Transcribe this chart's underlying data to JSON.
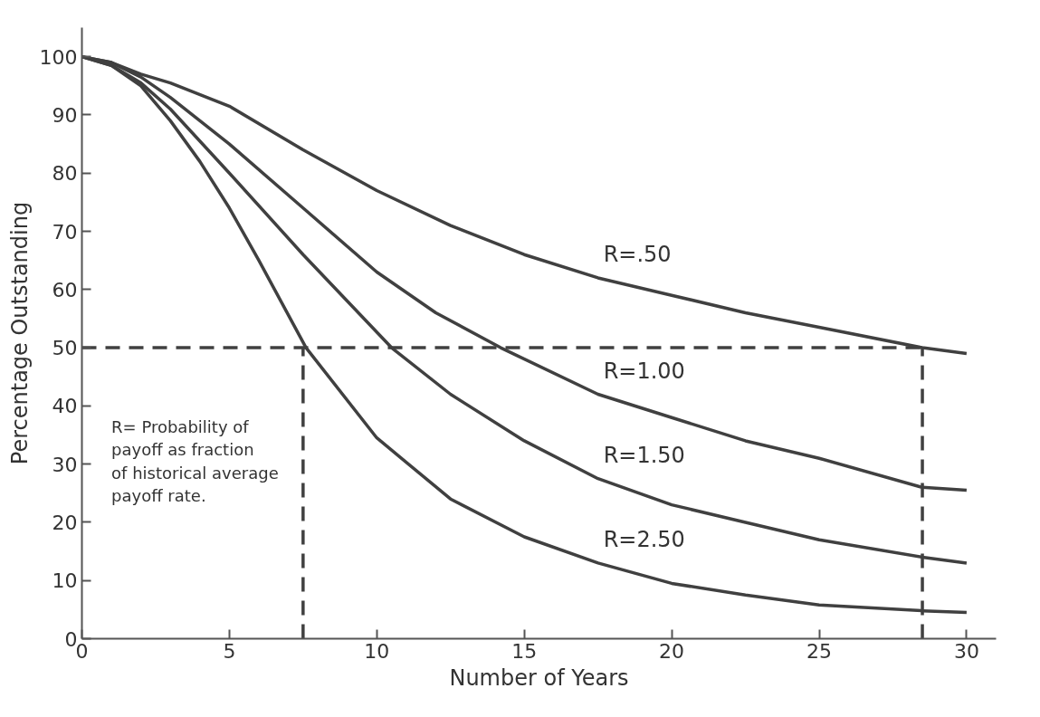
{
  "chart_data": {
    "type": "line",
    "xlabel": "Number of Years",
    "ylabel": "Percentage Outstanding",
    "xlim": [
      0,
      31
    ],
    "ylim": [
      0,
      105
    ],
    "xticks": [
      0,
      5,
      10,
      15,
      20,
      25,
      30
    ],
    "yticks": [
      0,
      10,
      20,
      30,
      40,
      50,
      60,
      70,
      80,
      90,
      100
    ],
    "grid": false,
    "legend": false,
    "marker": "none",
    "series": [
      {
        "name": "R=.50",
        "color": "#404040",
        "x": [
          0,
          1,
          2,
          3,
          5,
          7.5,
          10,
          12.5,
          15,
          17.5,
          20,
          22.5,
          25,
          28.5,
          30
        ],
        "values": [
          100,
          99,
          97,
          95.5,
          91.5,
          84,
          77,
          71,
          66,
          62,
          59,
          56,
          53.5,
          50,
          49
        ]
      },
      {
        "name": "R=1.00",
        "color": "#404040",
        "x": [
          0,
          1,
          2,
          3,
          5,
          7.5,
          10,
          12,
          14.2,
          17.5,
          20,
          22.5,
          25,
          28.5,
          30
        ],
        "values": [
          100,
          99,
          96.5,
          93,
          85,
          74,
          63,
          56,
          50,
          42,
          38,
          34,
          31,
          26,
          25.5
        ]
      },
      {
        "name": "R=1.50",
        "color": "#404040",
        "x": [
          0,
          1,
          2,
          3,
          5,
          7.5,
          10.5,
          12.5,
          15,
          17.5,
          20,
          22.5,
          25,
          28.5,
          30
        ],
        "values": [
          100,
          98.5,
          95.5,
          91,
          80,
          66,
          50,
          42,
          34,
          27.5,
          23,
          20,
          17,
          14,
          13
        ]
      },
      {
        "name": "R=2.50",
        "color": "#404040",
        "x": [
          0,
          1,
          2,
          3,
          4,
          5,
          6,
          7.6,
          10,
          12.5,
          15,
          17.5,
          20,
          22.5,
          25,
          28.5,
          30
        ],
        "values": [
          100,
          98.5,
          95,
          89,
          82,
          74,
          65,
          50,
          34.5,
          24,
          17.5,
          13,
          9.5,
          7.5,
          5.8,
          4.8,
          4.5
        ]
      },
      {
        "type": "line",
        "line_style": "dashed",
        "color": "#404040",
        "x": [
          0,
          28.5
        ],
        "values": [
          50,
          50
        ]
      },
      {
        "type": "line",
        "line_style": "dashed",
        "color": "#404040",
        "x": [
          7.5,
          7.5
        ],
        "values": [
          0,
          50
        ]
      },
      {
        "type": "line",
        "line_style": "dashed",
        "color": "#404040",
        "x": [
          28.5,
          28.5
        ],
        "values": [
          0,
          50
        ]
      }
    ],
    "annotations": [
      "R= Probability of\npayoff as fraction\nof historical average\npayoff rate."
    ]
  }
}
